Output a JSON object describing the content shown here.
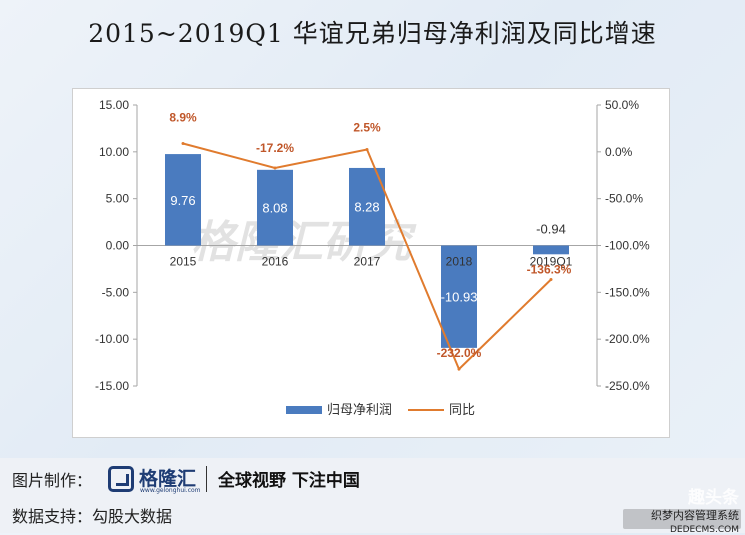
{
  "title": "2015~2019Q1 华谊兄弟归母净利润及同比增速",
  "watermark": "格隆汇研究",
  "chart_data": {
    "type": "bar+line",
    "categories": [
      "2015",
      "2016",
      "2017",
      "2018",
      "2019Q1"
    ],
    "series": [
      {
        "name": "归母净利润",
        "type": "bar",
        "axis": "left",
        "color": "#4a7bbf",
        "values": [
          9.76,
          8.08,
          8.28,
          -10.93,
          -0.94
        ],
        "labels": [
          "9.76",
          "8.08",
          "8.28",
          "-10.93",
          "-0.94"
        ]
      },
      {
        "name": "同比",
        "type": "line",
        "axis": "right",
        "color": "#e07b2e",
        "values": [
          8.9,
          -17.2,
          2.5,
          -232.0,
          -136.3
        ],
        "labels": [
          "8.9%",
          "-17.2%",
          "2.5%",
          "-232.0%",
          "-136.3%"
        ]
      }
    ],
    "left_axis": {
      "min": -15,
      "max": 15,
      "ticks": [
        "15.00",
        "10.00",
        "5.00",
        "0.00",
        "-5.00",
        "-10.00",
        "-15.00"
      ]
    },
    "right_axis": {
      "min": -250,
      "max": 50,
      "ticks": [
        "50.0%",
        "0.0%",
        "-50.0%",
        "-100.0%",
        "-150.0%",
        "-200.0%",
        "-250.0%"
      ]
    },
    "legend_position": "bottom",
    "grid": false
  },
  "footer": {
    "made_by_label": "图片制作：",
    "logo_name": "格隆汇",
    "logo_url": "www.gelonghui.com",
    "slogan": "全球视野 下注中国",
    "source_label": "数据支持：",
    "source_value": "勾股大数据",
    "corner_watermark": "趣头条",
    "corner_badge": "织梦内容管理系统",
    "corner_site": "DEDECMS.COM"
  }
}
